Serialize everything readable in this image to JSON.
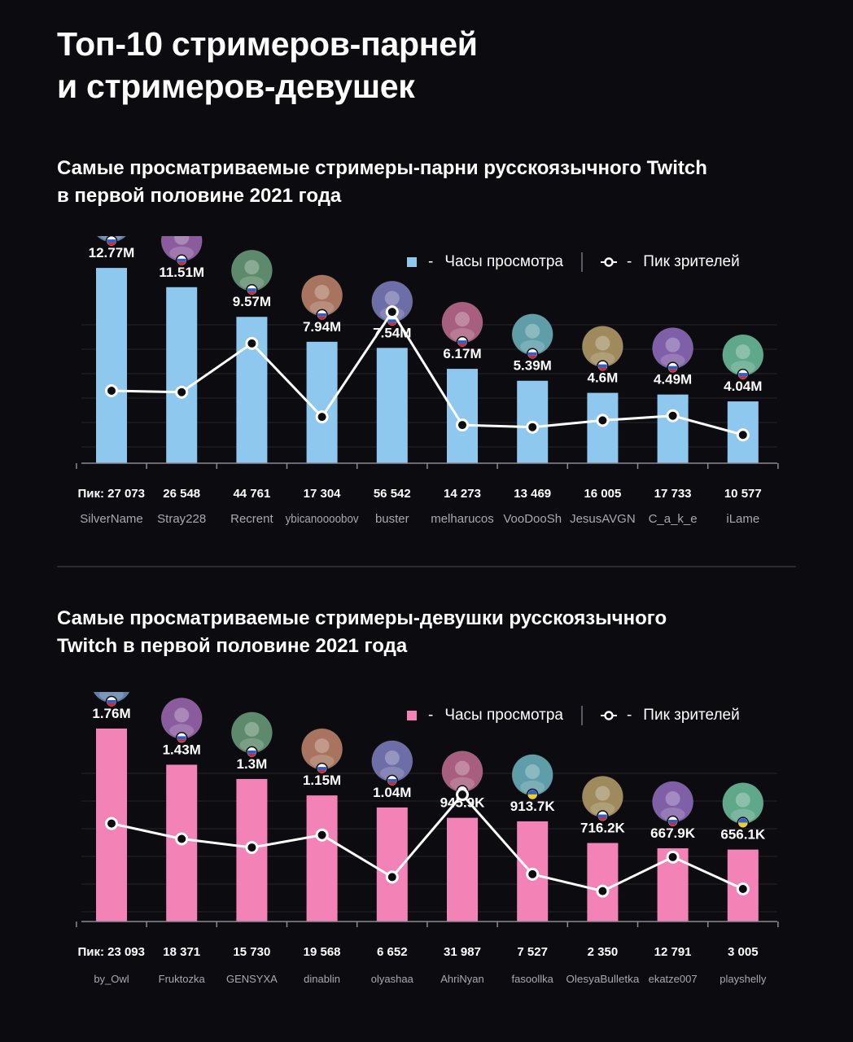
{
  "header": {
    "title_line1": "Топ-10 стримеров-парней",
    "title_line2": "и стримеров-девушек"
  },
  "colors": {
    "background": "#0c0c10",
    "male_bar": "#8ec8ef",
    "female_bar": "#f383b6",
    "line": "#ffffff",
    "grid": "#26262c",
    "muted_text": "#a8a8b0"
  },
  "chart_data": [
    {
      "type": "bar",
      "title_line1": "Самые просматриваемые стримеры-парни русскоязычного Twitch",
      "title_line2": "в первой половине 2021 года",
      "legend": {
        "bar_label": "Часы просмотра",
        "line_label": "Пик зрителей",
        "dash": "-"
      },
      "categories": [
        "SilverName",
        "Stray228",
        "Recrent",
        "ybicanoooobov",
        "buster",
        "melharucos",
        "VooDooSh",
        "JesusAVGN",
        "C_a_k_e",
        "iLame"
      ],
      "series": [
        {
          "name": "Часы просмотра",
          "type": "bar",
          "values": [
            12.77,
            11.51,
            9.57,
            7.94,
            7.54,
            6.17,
            5.39,
            4.6,
            4.49,
            4.04
          ],
          "unit": "M"
        },
        {
          "name": "Пик зрителей",
          "type": "line",
          "values": [
            27073,
            26548,
            44761,
            17304,
            56542,
            14273,
            13469,
            16005,
            17733,
            10577
          ]
        }
      ],
      "bar_labels": [
        "12.77M",
        "11.51M",
        "9.57M",
        "7.94M",
        "7.54M",
        "6.17M",
        "5.39M",
        "4.6M",
        "4.49M",
        "4.04M"
      ],
      "peak_prefix": "Пик: ",
      "peak_labels": [
        "27 073",
        "26 548",
        "44 761",
        "17 304",
        "56 542",
        "14 273",
        "13 469",
        "16 005",
        "17 733",
        "10 577"
      ],
      "flags": [
        "RU",
        "RU",
        "RU",
        "RU",
        "RU",
        "RU",
        "RU",
        "RU",
        "RU",
        "RU"
      ],
      "ylim_bars": [
        0,
        14
      ],
      "ylim_line": [
        0,
        80000
      ],
      "grid": true,
      "legend_position": "top-right"
    },
    {
      "type": "bar",
      "title_line1": "Самые просматриваемые стримеры-девушки русскоязычного",
      "title_line2": "Twitch в первой половине 2021 года",
      "legend": {
        "bar_label": "Часы просмотра",
        "line_label": "Пик зрителей",
        "dash": "-"
      },
      "categories": [
        "by_Owl",
        "Fruktozka",
        "GENSYXA",
        "dinablin",
        "olyashaa",
        "AhriNyan",
        "fasoollka",
        "OlesyaBulletka",
        "ekatze007",
        "playshelly"
      ],
      "series": [
        {
          "name": "Часы просмотра",
          "type": "bar",
          "values": [
            1760,
            1430,
            1300,
            1150,
            1040,
            945.9,
            913.7,
            716.2,
            667.9,
            656.1
          ],
          "unit": "K"
        },
        {
          "name": "Пик зрителей",
          "type": "line",
          "values": [
            23093,
            18371,
            15730,
            19568,
            6652,
            31987,
            7527,
            2350,
            12791,
            3005
          ]
        }
      ],
      "bar_labels": [
        "1.76M",
        "1.43M",
        "1.3M",
        "1.15M",
        "1.04M",
        "945.9K",
        "913.7K",
        "716.2K",
        "667.9K",
        "656.1K"
      ],
      "peak_prefix": "Пик: ",
      "peak_labels": [
        "23 093",
        "18 371",
        "15 730",
        "19 568",
        "6 652",
        "31 987",
        "7 527",
        "2 350",
        "12 791",
        "3 005"
      ],
      "flags": [
        "RU",
        "RU",
        "RU",
        "RU",
        "RU",
        "RU",
        "UA",
        "RU",
        "RU",
        "UA"
      ],
      "ylim_bars": [
        0,
        1960
      ],
      "ylim_line": [
        -7000,
        59000
      ],
      "grid": true,
      "legend_position": "top-right"
    }
  ]
}
